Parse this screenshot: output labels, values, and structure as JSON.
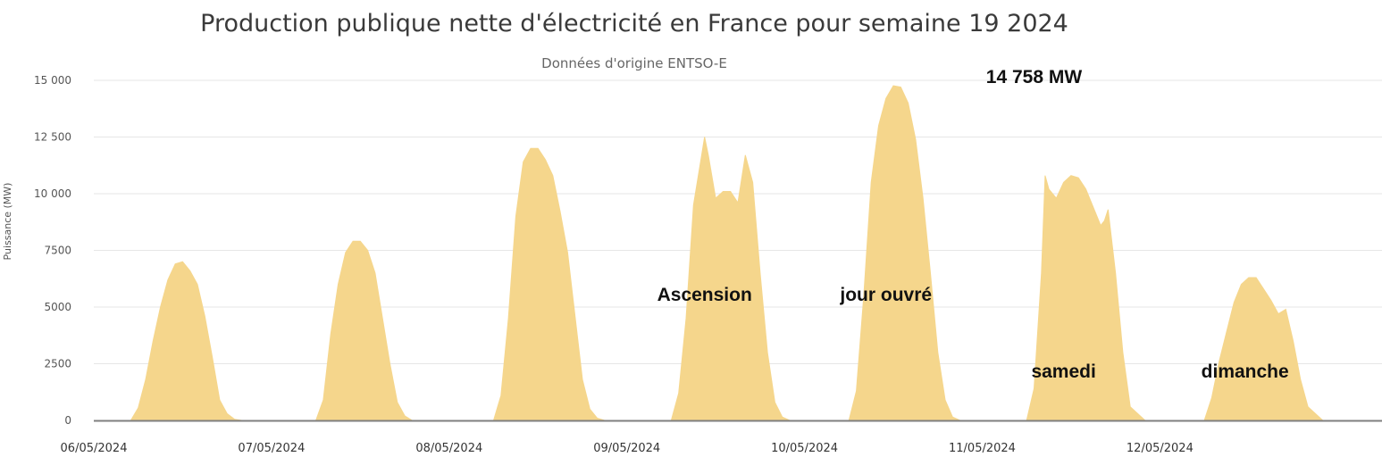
{
  "chart_data": {
    "type": "area",
    "title": "Production publique nette d'électricité en France pour semaine 19 2024",
    "subtitle": "Données d'origine ENTSO-E",
    "ylabel": "Puissance (MW)",
    "xlabel": "",
    "ylim": [
      0,
      15000
    ],
    "yticks": [
      0,
      2500,
      5000,
      7500,
      10000,
      12500,
      15000
    ],
    "ytick_labels": [
      "0",
      "2500",
      "5000",
      "7500",
      "10 000",
      "12 500",
      "15 000"
    ],
    "xlim_hours": [
      0,
      174
    ],
    "x_tick_labels": [
      "06/05/2024",
      "07/05/2024",
      "08/05/2024",
      "09/05/2024",
      "10/05/2024",
      "11/05/2024",
      "12/05/2024"
    ],
    "color": "#f5d68c",
    "grid": true,
    "legend": "none",
    "series": [
      {
        "x_hours": [
          0,
          5,
          6,
          7,
          8,
          9,
          10,
          11,
          12,
          13,
          14,
          15,
          16,
          17,
          18,
          19,
          20,
          21,
          22,
          24,
          29,
          30,
          31,
          32,
          33,
          34,
          35,
          36,
          37,
          38,
          39,
          40,
          41,
          42,
          43,
          44,
          45,
          46,
          48,
          53,
          54,
          55,
          56,
          57,
          58,
          59,
          60,
          61,
          62,
          63,
          64,
          65,
          66,
          67,
          68,
          69,
          70,
          72,
          77,
          78,
          79,
          80,
          81,
          82,
          82.5,
          83,
          84,
          85,
          86,
          87,
          88,
          89,
          90,
          91,
          92,
          93,
          94,
          96,
          101,
          102,
          103,
          104,
          105,
          106,
          107,
          108,
          109,
          110,
          111,
          112,
          113,
          114,
          115,
          116,
          117,
          118,
          120,
          125,
          126,
          127,
          128,
          128.5,
          129,
          130,
          131,
          132,
          133,
          134,
          135,
          136,
          136.5,
          137,
          138,
          139,
          140,
          142,
          144,
          149,
          150,
          151,
          152,
          153,
          154,
          155,
          156,
          157,
          158,
          159,
          160,
          161,
          162,
          163,
          164,
          165,
          166,
          168,
          170,
          172,
          174
        ],
        "values": [
          0,
          0,
          550,
          1800,
          3500,
          5000,
          6200,
          6900,
          7000,
          6600,
          6000,
          4600,
          2800,
          900,
          300,
          50,
          0,
          0,
          0,
          0,
          0,
          0,
          900,
          3800,
          6000,
          7400,
          7900,
          7900,
          7500,
          6500,
          4500,
          2500,
          800,
          200,
          0,
          0,
          0,
          0,
          0,
          0,
          0,
          1100,
          4500,
          9000,
          11400,
          12000,
          12000,
          11500,
          10800,
          9200,
          7400,
          4600,
          1800,
          500,
          100,
          0,
          0,
          0,
          0,
          0,
          1200,
          4500,
          9500,
          11500,
          12500,
          11700,
          9800,
          10100,
          10100,
          9600,
          11700,
          10500,
          6500,
          3000,
          800,
          150,
          0,
          0,
          0,
          0,
          1300,
          5500,
          10500,
          13000,
          14200,
          14758,
          14700,
          14000,
          12400,
          9800,
          6500,
          3000,
          900,
          150,
          0,
          0,
          0,
          0,
          0,
          1400,
          6500,
          10800,
          10200,
          9800,
          10500,
          10800,
          10700,
          10200,
          9400,
          8600,
          8800,
          9300,
          6500,
          3000,
          600,
          0,
          0,
          0,
          0,
          1000,
          2600,
          3900,
          5200,
          6000,
          6300,
          6300,
          5800,
          5300,
          4700,
          4900,
          3500,
          1800,
          600,
          300,
          0,
          0,
          0,
          0,
          0
        ]
      }
    ],
    "annotations": [
      {
        "text": "14 758 MW",
        "x_hours": 127,
        "y": 15200
      },
      {
        "text": "Ascension",
        "x_hours": 82.5,
        "y": 5600
      },
      {
        "text": "jour ouvré",
        "x_hours": 107,
        "y": 5600
      },
      {
        "text": "samedi",
        "x_hours": 131,
        "y": 2200
      },
      {
        "text": "dimanche",
        "x_hours": 155.5,
        "y": 2200
      }
    ]
  }
}
